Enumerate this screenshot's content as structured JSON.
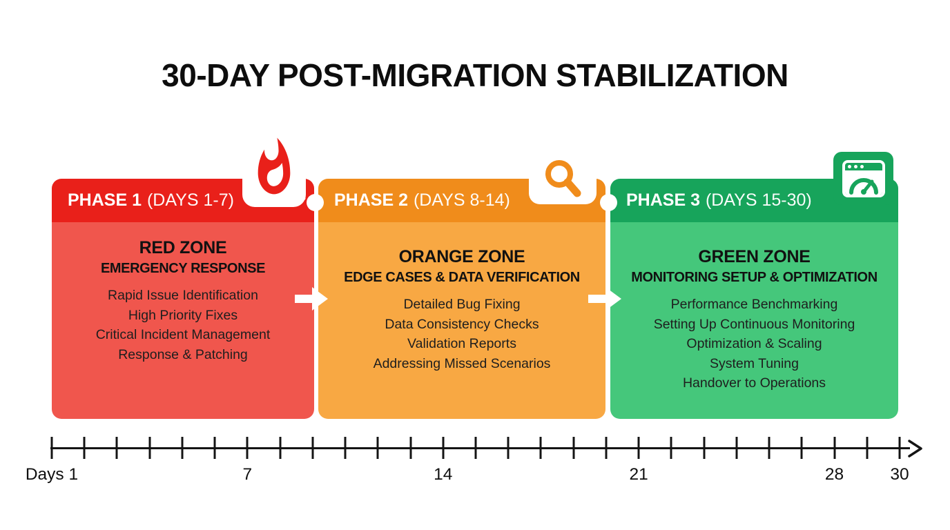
{
  "title": "30-DAY POST-MIGRATION STABILIZATION",
  "phases": [
    {
      "header": {
        "name": "PHASE 1",
        "days": "(DAYS 1-7)"
      },
      "icon": "fire-icon",
      "zone_title": "RED ZONE",
      "zone_subtitle": "EMERGENCY RESPONSE",
      "items": [
        "Rapid Issue Identification",
        "High Priority Fixes",
        "Critical Incident Management",
        "Response & Patching"
      ],
      "colors": {
        "header": "#e9201a",
        "body": "#f0564d"
      }
    },
    {
      "header": {
        "name": "PHASE 2",
        "days": "(DAYS 8-14)"
      },
      "icon": "magnifying-glass-icon",
      "zone_title": "ORANGE ZONE",
      "zone_subtitle": "EDGE CASES & DATA VERIFICATION",
      "items": [
        "Detailed Bug Fixing",
        "Data Consistency Checks",
        "Validation Reports",
        "Addressing Missed Scenarios"
      ],
      "colors": {
        "header": "#f08c1b",
        "body": "#f8a843"
      }
    },
    {
      "header": {
        "name": "PHASE 3",
        "days": "(DAYS 15-30)"
      },
      "icon": "dashboard-gauge-icon",
      "zone_title": "GREEN ZONE",
      "zone_subtitle": "MONITORING SETUP & OPTIMIZATION",
      "items": [
        "Performance Benchmarking",
        "Setting Up Continuous Monitoring",
        "Optimization & Scaling",
        "System Tuning",
        "Handover to Operations"
      ],
      "colors": {
        "header": "#17a45b",
        "body": "#45c77b"
      }
    }
  ],
  "timeline": {
    "tick_count": 27,
    "axis_color": "#141414",
    "labels": [
      {
        "tick": 0,
        "text": "Days 1"
      },
      {
        "tick": 6,
        "text": "7"
      },
      {
        "tick": 12,
        "text": "14"
      },
      {
        "tick": 18,
        "text": "21"
      },
      {
        "tick": 24,
        "text": "28"
      },
      {
        "tick": 26,
        "text": "30"
      }
    ]
  }
}
